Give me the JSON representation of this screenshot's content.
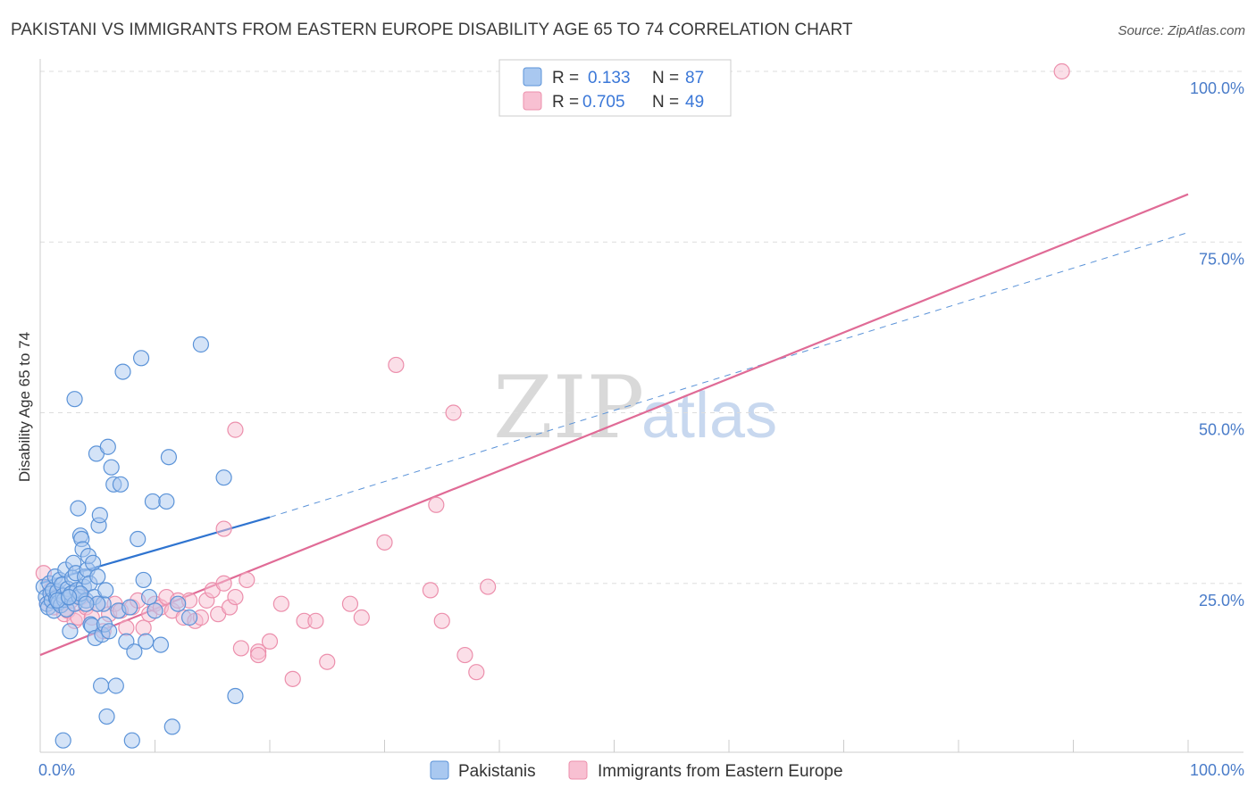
{
  "title": "PAKISTANI VS IMMIGRANTS FROM EASTERN EUROPE DISABILITY AGE 65 TO 74 CORRELATION CHART",
  "source": "Source: ZipAtlas.com",
  "watermark": {
    "zip": "ZIP",
    "atlas": "atlas"
  },
  "colors": {
    "blue_fill": "#a9c8f0",
    "blue_stroke": "#5b93d8",
    "blue_line": "#2f74d0",
    "pink_fill": "#f8c0d2",
    "pink_stroke": "#ec8fac",
    "pink_line": "#e06b96",
    "grid": "#dddddd",
    "axis_text": "#4a7cc9"
  },
  "legend": {
    "r_label": "R =",
    "n_label": "N =",
    "series": [
      {
        "r": "0.133",
        "n": "87"
      },
      {
        "r": "0.705",
        "n": "49"
      }
    ]
  },
  "chart_data": {
    "type": "scatter",
    "title": "PAKISTANI VS IMMIGRANTS FROM EASTERN EUROPE DISABILITY AGE 65 TO 74 CORRELATION CHART",
    "xlabel": "",
    "ylabel": "Disability Age 65 to 74",
    "xlim": [
      0,
      100
    ],
    "ylim": [
      0,
      100
    ],
    "x_tick_labels": [
      "0.0%",
      "100.0%"
    ],
    "y_ticks": [
      25,
      50,
      75,
      100
    ],
    "y_tick_labels": [
      "25.0%",
      "50.0%",
      "75.0%",
      "100.0%"
    ],
    "legend_position": "bottom",
    "series": [
      {
        "name": "Pakistanis",
        "color": "blue",
        "r": 0.133,
        "n": 87,
        "trend": {
          "x0": 0,
          "y0": 25.0,
          "x1": 20,
          "y1": 34.7,
          "dash_to_x": 100,
          "dash_to_y": 76.4
        },
        "points": [
          [
            0.3,
            24.5
          ],
          [
            0.5,
            23.0
          ],
          [
            0.6,
            22.0
          ],
          [
            0.7,
            21.5
          ],
          [
            0.8,
            25.0
          ],
          [
            0.9,
            23.5
          ],
          [
            1.0,
            22.5
          ],
          [
            1.1,
            24.0
          ],
          [
            1.2,
            21.0
          ],
          [
            1.3,
            26.0
          ],
          [
            1.4,
            22.8
          ],
          [
            1.5,
            23.8
          ],
          [
            1.6,
            22.2
          ],
          [
            1.7,
            25.5
          ],
          [
            1.8,
            21.8
          ],
          [
            1.9,
            24.8
          ],
          [
            2.0,
            23.2
          ],
          [
            2.1,
            22.6
          ],
          [
            2.2,
            27.0
          ],
          [
            2.3,
            21.2
          ],
          [
            2.4,
            24.2
          ],
          [
            2.5,
            22.9
          ],
          [
            2.6,
            18.0
          ],
          [
            2.7,
            23.5
          ],
          [
            2.8,
            25.8
          ],
          [
            2.9,
            28.0
          ],
          [
            3.0,
            22.0
          ],
          [
            3.1,
            26.5
          ],
          [
            3.2,
            24.0
          ],
          [
            3.3,
            36.0
          ],
          [
            3.4,
            23.0
          ],
          [
            3.5,
            32.0
          ],
          [
            3.6,
            31.5
          ],
          [
            3.7,
            30.0
          ],
          [
            3.8,
            24.5
          ],
          [
            3.9,
            26.0
          ],
          [
            4.0,
            22.5
          ],
          [
            4.1,
            27.0
          ],
          [
            4.2,
            29.0
          ],
          [
            4.3,
            25.0
          ],
          [
            4.4,
            19.0
          ],
          [
            4.5,
            18.8
          ],
          [
            4.6,
            28.0
          ],
          [
            4.7,
            23.0
          ],
          [
            4.8,
            17.0
          ],
          [
            4.9,
            44.0
          ],
          [
            5.0,
            26.0
          ],
          [
            5.1,
            33.5
          ],
          [
            5.2,
            35.0
          ],
          [
            5.3,
            10.0
          ],
          [
            5.4,
            17.5
          ],
          [
            5.5,
            22.0
          ],
          [
            5.6,
            19.0
          ],
          [
            5.7,
            24.0
          ],
          [
            5.8,
            5.5
          ],
          [
            5.9,
            45.0
          ],
          [
            6.0,
            18.0
          ],
          [
            6.2,
            42.0
          ],
          [
            6.4,
            39.5
          ],
          [
            6.6,
            10.0
          ],
          [
            6.8,
            21.0
          ],
          [
            7.0,
            39.5
          ],
          [
            7.2,
            56.0
          ],
          [
            7.5,
            16.5
          ],
          [
            7.8,
            21.5
          ],
          [
            8.0,
            2.0
          ],
          [
            8.2,
            15.0
          ],
          [
            8.5,
            31.5
          ],
          [
            8.8,
            58.0
          ],
          [
            9.0,
            25.5
          ],
          [
            9.2,
            16.5
          ],
          [
            9.5,
            23.0
          ],
          [
            9.8,
            37.0
          ],
          [
            10.0,
            21.0
          ],
          [
            10.5,
            16.0
          ],
          [
            11.0,
            37.0
          ],
          [
            11.2,
            43.5
          ],
          [
            11.5,
            4.0
          ],
          [
            12.0,
            22.0
          ],
          [
            13.0,
            20.0
          ],
          [
            14.0,
            60.0
          ],
          [
            3.0,
            52.0
          ],
          [
            2.0,
            2.0
          ],
          [
            5.0,
            22.0
          ],
          [
            3.5,
            23.5
          ],
          [
            4.0,
            22.0
          ],
          [
            16.0,
            40.5
          ],
          [
            17.0,
            8.5
          ],
          [
            1.5,
            22.5
          ],
          [
            2.5,
            23.0
          ]
        ]
      },
      {
        "name": "Immigrants from Eastern Europe",
        "color": "pink",
        "r": 0.705,
        "n": 49,
        "trend": {
          "x0": 0,
          "y0": 14.5,
          "x1": 100,
          "y1": 82.0
        },
        "points": [
          [
            0.3,
            26.5
          ],
          [
            0.6,
            22.0
          ],
          [
            0.9,
            24.0
          ],
          [
            1.2,
            21.5
          ],
          [
            1.5,
            23.0
          ],
          [
            1.8,
            22.0
          ],
          [
            2.1,
            20.5
          ],
          [
            2.4,
            21.0
          ],
          [
            2.7,
            22.5
          ],
          [
            3.0,
            19.5
          ],
          [
            3.3,
            20.0
          ],
          [
            3.6,
            23.0
          ],
          [
            4.0,
            21.5
          ],
          [
            4.5,
            20.0
          ],
          [
            5.0,
            22.0
          ],
          [
            5.5,
            18.0
          ],
          [
            6.0,
            20.5
          ],
          [
            6.5,
            22.0
          ],
          [
            7.0,
            21.0
          ],
          [
            7.5,
            18.5
          ],
          [
            8.0,
            21.5
          ],
          [
            8.5,
            22.5
          ],
          [
            9.0,
            18.5
          ],
          [
            9.5,
            20.5
          ],
          [
            10.0,
            22.0
          ],
          [
            10.5,
            21.5
          ],
          [
            11.0,
            23.0
          ],
          [
            11.5,
            21.0
          ],
          [
            12.0,
            22.5
          ],
          [
            12.5,
            20.0
          ],
          [
            13.0,
            22.5
          ],
          [
            13.5,
            19.5
          ],
          [
            14.0,
            20.0
          ],
          [
            14.5,
            22.5
          ],
          [
            15.0,
            24.0
          ],
          [
            15.5,
            20.5
          ],
          [
            16.0,
            25.0
          ],
          [
            16.5,
            21.5
          ],
          [
            17.0,
            23.0
          ],
          [
            17.5,
            15.5
          ],
          [
            18.0,
            25.5
          ],
          [
            19.0,
            15.0
          ],
          [
            20.0,
            16.5
          ],
          [
            21.0,
            22.0
          ],
          [
            22.0,
            11.0
          ],
          [
            23.0,
            19.5
          ],
          [
            24.0,
            19.5
          ],
          [
            25.0,
            13.5
          ],
          [
            27.0,
            22.0
          ],
          [
            28.0,
            20.0
          ],
          [
            30.0,
            31.0
          ],
          [
            31.0,
            57.0
          ],
          [
            34.0,
            24.0
          ],
          [
            35.0,
            19.5
          ],
          [
            36.0,
            50.0
          ],
          [
            37.0,
            14.5
          ],
          [
            38.0,
            12.0
          ],
          [
            39.0,
            24.5
          ],
          [
            16.0,
            33.0
          ],
          [
            17.0,
            47.5
          ],
          [
            19.0,
            14.5
          ],
          [
            34.5,
            36.5
          ],
          [
            89.0,
            100.0
          ]
        ]
      }
    ]
  },
  "bottom_legend": [
    "Pakistanis",
    "Immigrants from Eastern Europe"
  ]
}
